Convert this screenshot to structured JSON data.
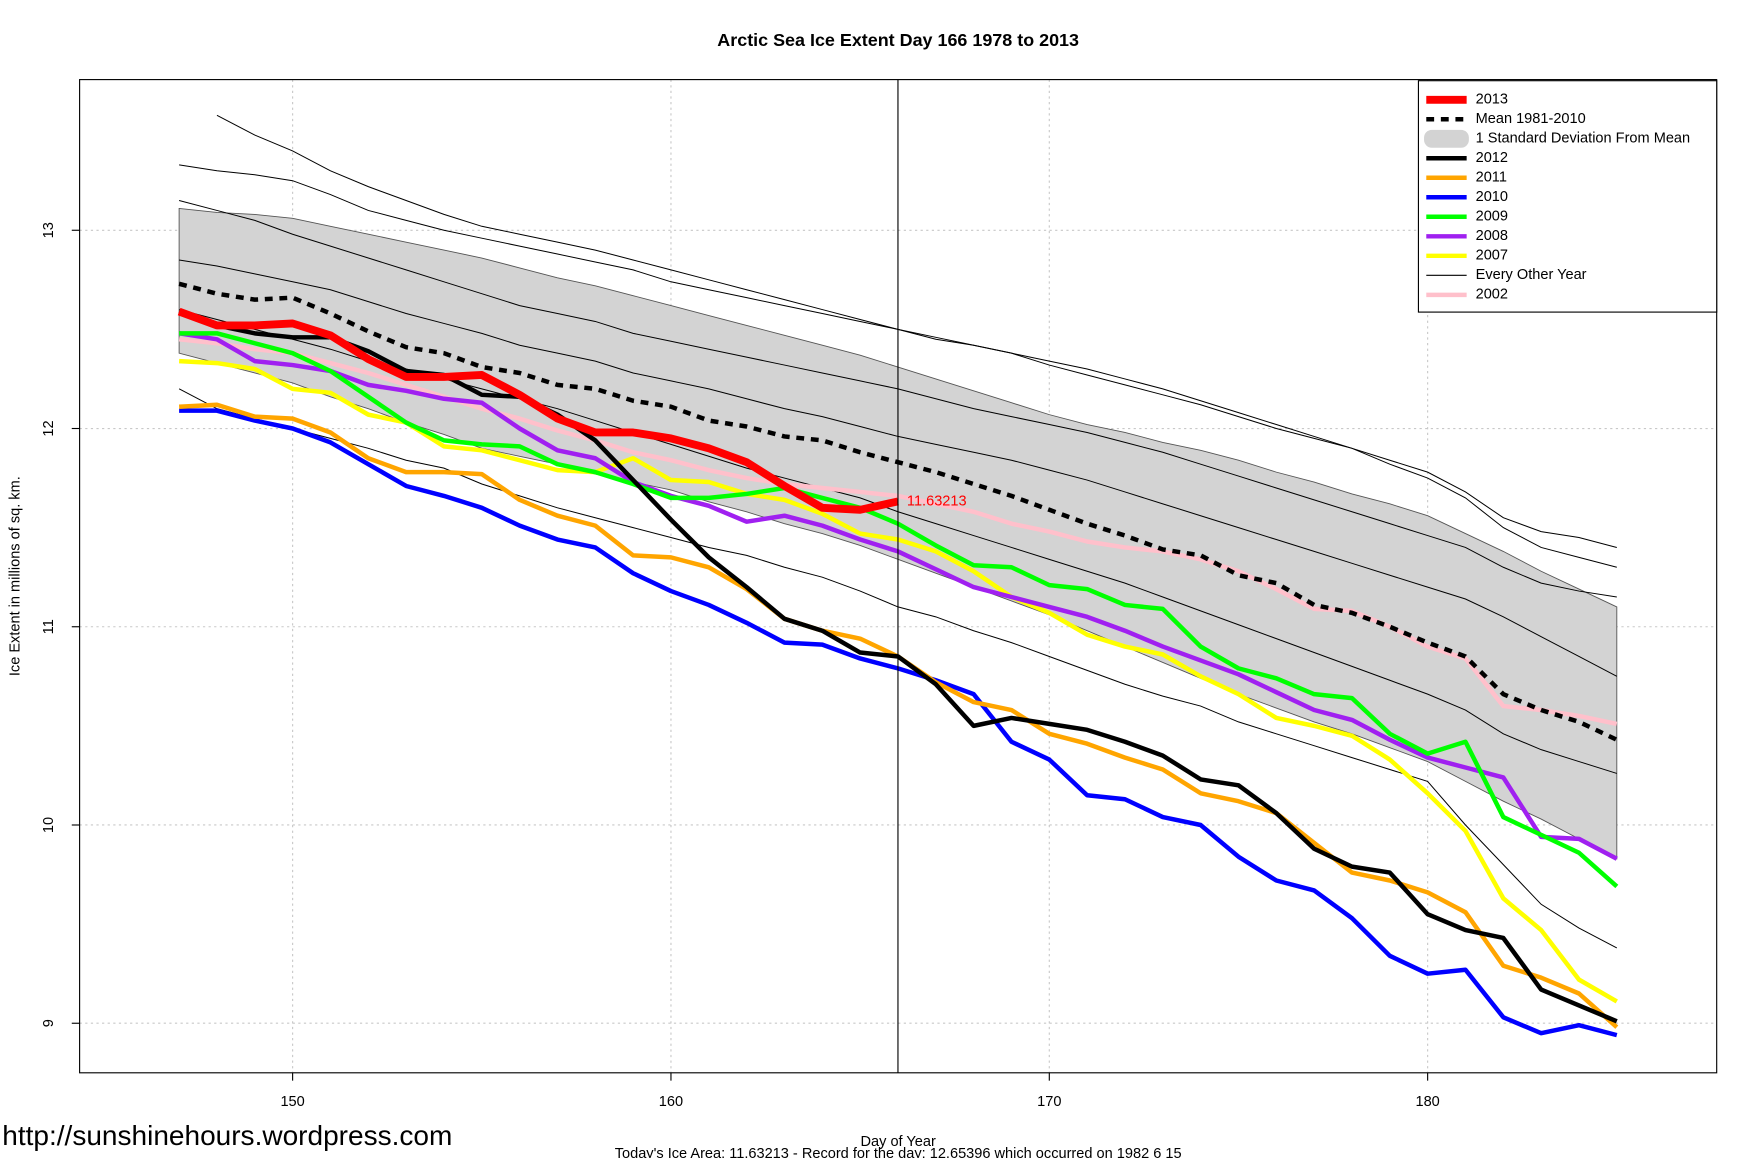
{
  "chart_data": {
    "type": "line",
    "title": "Arctic Sea Ice Extent Day 166 1978 to 2013",
    "x_label": "Day of Year",
    "y_label": "Ice Extent in millions of sq. km.",
    "caption": "Today's Ice Area: 11.63213  - Record for the day: 12.65396 which occurred on 1982 6 15",
    "watermark": "http://sunshinehours.wordpress.com",
    "annotation": "11.63213",
    "vline": 166,
    "grid": true,
    "legend_position": "top-right",
    "xlim": [
      144.37,
      187.64
    ],
    "ylim": [
      8.75,
      13.76
    ],
    "xticks": [
      150,
      160,
      170,
      180
    ],
    "yticks": [
      9,
      10,
      11,
      12,
      13
    ],
    "x": [
      147,
      148,
      149,
      150,
      151,
      152,
      153,
      154,
      155,
      156,
      157,
      158,
      159,
      160,
      161,
      162,
      163,
      164,
      165,
      166,
      167,
      168,
      169,
      170,
      171,
      172,
      173,
      174,
      175,
      176,
      177,
      178,
      179,
      180,
      181,
      182,
      183,
      184,
      185
    ],
    "band": {
      "name": "1 Standard Deviation From Mean",
      "color": "#d3d3d3",
      "upper": [
        13.11,
        13.09,
        13.08,
        13.06,
        13.02,
        12.98,
        12.94,
        12.9,
        12.86,
        12.81,
        12.76,
        12.72,
        12.67,
        12.62,
        12.57,
        12.52,
        12.47,
        12.42,
        12.37,
        12.31,
        12.25,
        12.19,
        12.13,
        12.07,
        12.02,
        11.98,
        11.93,
        11.89,
        11.84,
        11.78,
        11.73,
        11.67,
        11.62,
        11.56,
        11.47,
        11.38,
        11.28,
        11.19,
        11.1
      ],
      "lower": [
        12.38,
        12.33,
        12.28,
        12.23,
        12.16,
        12.1,
        12.03,
        11.97,
        11.9,
        11.86,
        11.82,
        11.77,
        11.73,
        11.69,
        11.63,
        11.58,
        11.52,
        11.47,
        11.41,
        11.34,
        11.27,
        11.2,
        11.13,
        11.06,
        10.98,
        10.9,
        10.82,
        10.74,
        10.66,
        10.59,
        10.52,
        10.46,
        10.39,
        10.32,
        10.22,
        10.12,
        10.03,
        9.93,
        9.83
      ]
    },
    "other_years": {
      "name": "Every Other Year",
      "color": "#000000",
      "lines": [
        [
          null,
          13.58,
          13.48,
          13.4,
          13.3,
          13.22,
          13.15,
          13.08,
          13.02,
          12.98,
          12.94,
          12.9,
          12.85,
          12.8,
          12.75,
          12.7,
          12.65,
          12.6,
          12.55,
          12.5,
          12.46,
          12.42,
          12.38,
          12.34,
          12.3,
          12.25,
          12.2,
          12.14,
          12.08,
          12.02,
          11.96,
          11.9,
          11.84,
          11.78,
          11.68,
          11.55,
          11.48,
          11.45,
          11.4
        ],
        [
          13.33,
          13.3,
          13.28,
          13.25,
          13.18,
          13.1,
          13.05,
          13.0,
          12.96,
          12.92,
          12.88,
          12.84,
          12.8,
          12.74,
          12.7,
          12.66,
          12.62,
          12.58,
          12.54,
          12.5,
          12.45,
          12.42,
          12.38,
          12.32,
          12.27,
          12.22,
          12.17,
          12.12,
          12.06,
          12.0,
          11.95,
          11.9,
          11.82,
          11.75,
          11.65,
          11.5,
          11.4,
          11.35,
          11.3
        ],
        [
          13.15,
          13.1,
          13.05,
          12.98,
          12.92,
          12.86,
          12.8,
          12.74,
          12.68,
          12.62,
          12.58,
          12.54,
          12.48,
          12.44,
          12.4,
          12.36,
          12.32,
          12.28,
          12.24,
          12.2,
          12.15,
          12.1,
          12.06,
          12.02,
          11.98,
          11.93,
          11.88,
          11.82,
          11.76,
          11.7,
          11.64,
          11.58,
          11.52,
          11.46,
          11.4,
          11.3,
          11.22,
          11.18,
          11.15
        ],
        [
          12.85,
          12.82,
          12.78,
          12.74,
          12.7,
          12.64,
          12.58,
          12.53,
          12.48,
          12.42,
          12.38,
          12.34,
          12.28,
          12.24,
          12.2,
          12.15,
          12.1,
          12.06,
          12.01,
          11.96,
          11.92,
          11.88,
          11.84,
          11.79,
          11.74,
          11.68,
          11.62,
          11.56,
          11.5,
          11.44,
          11.38,
          11.32,
          11.26,
          11.2,
          11.14,
          11.05,
          10.95,
          10.85,
          10.75
        ],
        [
          12.6,
          12.55,
          12.5,
          12.45,
          12.4,
          12.34,
          12.3,
          12.25,
          12.2,
          12.15,
          12.1,
          12.04,
          11.98,
          11.92,
          11.86,
          11.8,
          11.75,
          11.7,
          11.65,
          11.58,
          11.52,
          11.46,
          11.4,
          11.34,
          11.28,
          11.22,
          11.15,
          11.08,
          11.01,
          10.94,
          10.87,
          10.8,
          10.73,
          10.66,
          10.58,
          10.46,
          10.38,
          10.32,
          10.26
        ],
        [
          12.2,
          12.1,
          12.05,
          12.0,
          11.95,
          11.9,
          11.84,
          11.8,
          11.72,
          11.66,
          11.6,
          11.55,
          11.5,
          11.45,
          11.4,
          11.36,
          11.3,
          11.25,
          11.18,
          11.1,
          11.05,
          10.98,
          10.92,
          10.85,
          10.78,
          10.71,
          10.65,
          10.6,
          10.52,
          10.46,
          10.4,
          10.34,
          10.28,
          10.22,
          10.0,
          9.8,
          9.6,
          9.48,
          9.38
        ]
      ]
    },
    "series": [
      {
        "name": "2013",
        "color": "#ff0000",
        "line_width": 7,
        "values": [
          12.59,
          12.52,
          12.52,
          12.53,
          12.47,
          12.35,
          12.26,
          12.26,
          12.27,
          12.17,
          12.05,
          11.98,
          11.98,
          11.95,
          11.9,
          11.83,
          11.71,
          11.6,
          11.59,
          11.63213,
          null,
          null,
          null,
          null,
          null,
          null,
          null,
          null,
          null,
          null,
          null,
          null,
          null,
          null,
          null,
          null,
          null,
          null,
          null
        ]
      },
      {
        "name": "Mean 1981-2010",
        "color": "#000000",
        "line_width": 4,
        "dashed": true,
        "values": [
          12.73,
          12.68,
          12.65,
          12.66,
          12.58,
          12.49,
          12.41,
          12.38,
          12.31,
          12.28,
          12.22,
          12.2,
          12.14,
          12.11,
          12.04,
          12.01,
          11.96,
          11.94,
          11.88,
          11.83,
          11.78,
          11.72,
          11.66,
          11.59,
          11.52,
          11.46,
          11.39,
          11.36,
          11.26,
          11.22,
          11.11,
          11.07,
          11.0,
          10.92,
          10.85,
          10.66,
          10.58,
          10.52,
          10.43
        ]
      },
      {
        "name": "2012",
        "color": "#000000",
        "line_width": 4,
        "values": [
          12.59,
          12.52,
          12.48,
          12.46,
          12.46,
          12.39,
          12.29,
          12.27,
          12.17,
          12.16,
          12.07,
          11.94,
          11.74,
          11.54,
          11.35,
          11.2,
          11.04,
          10.98,
          10.87,
          10.85,
          10.71,
          10.5,
          10.54,
          10.51,
          10.48,
          10.42,
          10.35,
          10.23,
          10.2,
          10.06,
          9.88,
          9.79,
          9.76,
          9.55,
          9.47,
          9.43,
          9.17,
          9.09,
          9.01
        ]
      },
      {
        "name": "2011",
        "color": "#ffa500",
        "line_width": 4,
        "values": [
          12.11,
          12.12,
          12.06,
          12.05,
          11.98,
          11.85,
          11.78,
          11.78,
          11.77,
          11.64,
          11.56,
          11.51,
          11.36,
          11.35,
          11.3,
          11.19,
          11.04,
          10.98,
          10.94,
          10.85,
          10.72,
          10.62,
          10.58,
          10.46,
          10.41,
          10.34,
          10.28,
          10.16,
          10.12,
          10.06,
          9.91,
          9.76,
          9.72,
          9.66,
          9.56,
          9.29,
          9.23,
          9.15,
          8.98
        ]
      },
      {
        "name": "2010",
        "color": "#0000ff",
        "line_width": 4,
        "values": [
          12.09,
          12.09,
          12.04,
          12.0,
          11.93,
          11.82,
          11.71,
          11.66,
          11.6,
          11.51,
          11.44,
          11.4,
          11.27,
          11.18,
          11.11,
          11.02,
          10.92,
          10.91,
          10.84,
          10.79,
          10.73,
          10.66,
          10.42,
          10.33,
          10.15,
          10.13,
          10.04,
          10.0,
          9.84,
          9.72,
          9.67,
          9.53,
          9.34,
          9.25,
          9.27,
          9.03,
          8.95,
          8.99,
          8.94
        ]
      },
      {
        "name": "2009",
        "color": "#00ff00",
        "line_width": 4,
        "values": [
          12.48,
          12.48,
          12.43,
          12.38,
          12.29,
          12.16,
          12.03,
          11.94,
          11.92,
          11.91,
          11.82,
          11.78,
          11.72,
          11.65,
          11.65,
          11.67,
          11.7,
          11.65,
          11.6,
          11.52,
          11.41,
          11.31,
          11.3,
          11.21,
          11.19,
          11.11,
          11.09,
          10.9,
          10.79,
          10.74,
          10.66,
          10.64,
          10.46,
          10.36,
          10.42,
          10.04,
          9.95,
          9.86,
          9.69
        ]
      },
      {
        "name": "2008",
        "color": "#a020f0",
        "line_width": 4,
        "values": [
          12.48,
          12.45,
          12.34,
          12.32,
          12.29,
          12.22,
          12.19,
          12.15,
          12.13,
          12.0,
          11.89,
          11.85,
          11.73,
          11.66,
          11.61,
          11.53,
          11.56,
          11.51,
          11.44,
          11.38,
          11.29,
          11.2,
          11.15,
          11.1,
          11.05,
          10.98,
          10.9,
          10.83,
          10.76,
          10.67,
          10.58,
          10.53,
          10.43,
          10.34,
          10.29,
          10.24,
          9.94,
          9.93,
          9.83
        ]
      },
      {
        "name": "2007",
        "color": "#ffff00",
        "line_width": 4,
        "values": [
          12.34,
          12.33,
          12.3,
          12.2,
          12.18,
          12.07,
          12.03,
          11.91,
          11.89,
          11.84,
          11.79,
          11.78,
          11.85,
          11.74,
          11.73,
          11.67,
          11.64,
          11.57,
          11.47,
          11.44,
          11.38,
          11.28,
          11.15,
          11.07,
          10.96,
          10.9,
          10.86,
          10.75,
          10.66,
          10.54,
          10.5,
          10.45,
          10.33,
          10.16,
          9.97,
          9.63,
          9.47,
          9.22,
          9.11
        ]
      },
      {
        "name": "2002",
        "color": "#ffc0cb",
        "line_width": 4,
        "values": [
          12.45,
          12.43,
          12.4,
          12.38,
          12.33,
          12.28,
          12.22,
          12.16,
          12.1,
          12.05,
          11.99,
          11.94,
          11.88,
          11.84,
          11.79,
          11.75,
          11.72,
          11.7,
          11.68,
          11.66,
          11.62,
          11.58,
          11.52,
          11.48,
          11.43,
          11.4,
          11.38,
          11.34,
          11.28,
          11.19,
          11.09,
          11.08,
          11.0,
          10.9,
          10.84,
          10.6,
          10.58,
          10.55,
          10.51
        ]
      }
    ]
  }
}
